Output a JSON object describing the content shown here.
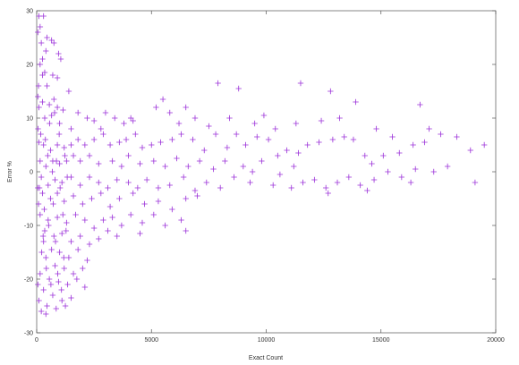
{
  "chart_data": {
    "type": "scatter",
    "title": "",
    "xlabel": "Exact Count",
    "ylabel": "Error %",
    "xlim": [
      0,
      20000
    ],
    "ylim": [
      -30,
      30
    ],
    "xticks": [
      0,
      5000,
      10000,
      15000,
      20000
    ],
    "yticks": [
      -30,
      -20,
      -10,
      0,
      10,
      20,
      30
    ],
    "xtick_labels": [
      "0",
      "5000",
      "10000",
      "15000",
      "20000"
    ],
    "ytick_labels": [
      "-30",
      "-20",
      "-10",
      "0",
      "10",
      "20",
      "30"
    ],
    "grid": false,
    "legend": "none",
    "marker": "+",
    "color": "#9b30d9",
    "series": [
      {
        "points": [
          [
            100,
            29
          ],
          [
            300,
            29
          ],
          [
            150,
            27
          ],
          [
            50,
            26
          ],
          [
            450,
            25
          ],
          [
            650,
            24.5
          ],
          [
            750,
            24
          ],
          [
            200,
            24
          ],
          [
            400,
            22.5
          ],
          [
            950,
            22
          ],
          [
            1050,
            21
          ],
          [
            250,
            21
          ],
          [
            150,
            20
          ],
          [
            350,
            18.5
          ],
          [
            700,
            18
          ],
          [
            900,
            17.5
          ],
          [
            250,
            18
          ],
          [
            450,
            16
          ],
          [
            80,
            16
          ],
          [
            1400,
            15
          ],
          [
            50,
            14
          ],
          [
            750,
            13.5
          ],
          [
            250,
            13
          ],
          [
            550,
            12.5
          ],
          [
            900,
            12
          ],
          [
            1150,
            11.5
          ],
          [
            100,
            12
          ],
          [
            1800,
            11
          ],
          [
            650,
            10.5
          ],
          [
            350,
            10
          ],
          [
            2200,
            10
          ],
          [
            1000,
            9
          ],
          [
            2500,
            9.5
          ],
          [
            3000,
            11
          ],
          [
            3400,
            10
          ],
          [
            3800,
            9
          ],
          [
            4100,
            10
          ],
          [
            4200,
            9.5
          ],
          [
            2800,
            8
          ],
          [
            1500,
            8
          ],
          [
            5500,
            13.5
          ],
          [
            5200,
            12
          ],
          [
            5800,
            11
          ],
          [
            6200,
            9
          ],
          [
            6500,
            12
          ],
          [
            6900,
            10
          ],
          [
            7500,
            8.5
          ],
          [
            7900,
            16.5
          ],
          [
            8400,
            10
          ],
          [
            8800,
            15.5
          ],
          [
            9500,
            9
          ],
          [
            9900,
            10.5
          ],
          [
            10400,
            8
          ],
          [
            11300,
            9
          ],
          [
            11500,
            16.5
          ],
          [
            12400,
            9.5
          ],
          [
            12800,
            15
          ],
          [
            13200,
            10
          ],
          [
            13900,
            13
          ],
          [
            14800,
            8
          ],
          [
            15500,
            6.5
          ],
          [
            16700,
            12.5
          ],
          [
            17100,
            8
          ],
          [
            17600,
            7
          ],
          [
            18300,
            6.5
          ],
          [
            19500,
            5
          ],
          [
            18900,
            4
          ],
          [
            16900,
            5.5
          ],
          [
            16400,
            5
          ],
          [
            15800,
            3.5
          ],
          [
            15100,
            3
          ],
          [
            14600,
            1.5
          ],
          [
            14300,
            3
          ],
          [
            13800,
            6
          ],
          [
            13400,
            6.5
          ],
          [
            12900,
            6
          ],
          [
            12300,
            5.5
          ],
          [
            11800,
            5
          ],
          [
            11400,
            3.5
          ],
          [
            10900,
            4
          ],
          [
            10500,
            3
          ],
          [
            10100,
            6
          ],
          [
            9600,
            6.5
          ],
          [
            9100,
            5
          ],
          [
            8700,
            7
          ],
          [
            8300,
            4.5
          ],
          [
            7800,
            7
          ],
          [
            7300,
            4
          ],
          [
            6800,
            6
          ],
          [
            6300,
            7
          ],
          [
            5900,
            6
          ],
          [
            5400,
            5.5
          ],
          [
            5000,
            5
          ],
          [
            4600,
            4.5
          ],
          [
            4300,
            7
          ],
          [
            3900,
            6
          ],
          [
            3600,
            5.5
          ],
          [
            3200,
            5
          ],
          [
            2900,
            7
          ],
          [
            2500,
            6
          ],
          [
            2100,
            5
          ],
          [
            1800,
            6
          ],
          [
            1500,
            5
          ],
          [
            1200,
            4.5
          ],
          [
            900,
            5
          ],
          [
            600,
            4
          ],
          [
            300,
            5
          ],
          [
            100,
            5.5
          ],
          [
            2300,
            3
          ],
          [
            1900,
            2
          ],
          [
            1600,
            3
          ],
          [
            1300,
            2
          ],
          [
            1000,
            1.5
          ],
          [
            700,
            2
          ],
          [
            400,
            1
          ],
          [
            150,
            2
          ],
          [
            2700,
            1.5
          ],
          [
            3300,
            2
          ],
          [
            3700,
            1
          ],
          [
            4000,
            3
          ],
          [
            4500,
            1.5
          ],
          [
            5100,
            2
          ],
          [
            5600,
            1
          ],
          [
            6100,
            2.5
          ],
          [
            6600,
            1
          ],
          [
            7100,
            2
          ],
          [
            7700,
            0.5
          ],
          [
            8200,
            2
          ],
          [
            9000,
            1
          ],
          [
            9400,
            0
          ],
          [
            9800,
            2
          ],
          [
            10600,
            -0.5
          ],
          [
            11200,
            1
          ],
          [
            11600,
            -2
          ],
          [
            12100,
            -1.5
          ],
          [
            12600,
            -3
          ],
          [
            13100,
            -2
          ],
          [
            13600,
            -1
          ],
          [
            14100,
            -2.5
          ],
          [
            14700,
            -1.5
          ],
          [
            15300,
            0
          ],
          [
            15900,
            -1
          ],
          [
            16500,
            0.5
          ],
          [
            17300,
            0
          ],
          [
            17900,
            1
          ],
          [
            19100,
            -2
          ],
          [
            16300,
            -2
          ],
          [
            14400,
            -3.5
          ],
          [
            12700,
            -4
          ],
          [
            11100,
            -3
          ],
          [
            10300,
            -2.5
          ],
          [
            9300,
            -2
          ],
          [
            8600,
            -1
          ],
          [
            8000,
            -3
          ],
          [
            7400,
            -2
          ],
          [
            6900,
            -3.5
          ],
          [
            6400,
            -1
          ],
          [
            5800,
            -2.5
          ],
          [
            5300,
            -3
          ],
          [
            4800,
            -1.5
          ],
          [
            4400,
            -3
          ],
          [
            4000,
            -2
          ],
          [
            3500,
            -1.5
          ],
          [
            3100,
            -3
          ],
          [
            2700,
            -2
          ],
          [
            2300,
            -1
          ],
          [
            1900,
            -2.5
          ],
          [
            1500,
            -1
          ],
          [
            1100,
            -2
          ],
          [
            800,
            -1.5
          ],
          [
            500,
            -2.5
          ],
          [
            200,
            -1
          ],
          [
            50,
            -3
          ],
          [
            250,
            -4
          ],
          [
            600,
            -5
          ],
          [
            900,
            -4
          ],
          [
            1200,
            -5.5
          ],
          [
            1600,
            -4.5
          ],
          [
            2000,
            -6
          ],
          [
            2400,
            -5
          ],
          [
            2800,
            -4
          ],
          [
            3200,
            -6.5
          ],
          [
            3600,
            -5
          ],
          [
            4200,
            -4
          ],
          [
            4700,
            -6
          ],
          [
            5300,
            -5.5
          ],
          [
            5900,
            -7
          ],
          [
            6500,
            -5
          ],
          [
            7000,
            -4.5
          ],
          [
            6300,
            -9
          ],
          [
            5600,
            -10
          ],
          [
            5100,
            -8
          ],
          [
            4600,
            -9.5
          ],
          [
            4100,
            -8
          ],
          [
            3700,
            -10
          ],
          [
            3300,
            -8.5
          ],
          [
            2900,
            -9
          ],
          [
            2500,
            -10.5
          ],
          [
            2100,
            -9
          ],
          [
            1700,
            -8
          ],
          [
            1300,
            -9.5
          ],
          [
            900,
            -8.5
          ],
          [
            500,
            -9
          ],
          [
            150,
            -8
          ],
          [
            350,
            -11
          ],
          [
            750,
            -12
          ],
          [
            1100,
            -11.5
          ],
          [
            1500,
            -13
          ],
          [
            1900,
            -12
          ],
          [
            2300,
            -13.5
          ],
          [
            2700,
            -12.5
          ],
          [
            3100,
            -11
          ],
          [
            3500,
            -12
          ],
          [
            4500,
            -11.5
          ],
          [
            6500,
            -11
          ],
          [
            300,
            -13
          ],
          [
            650,
            -14.5
          ],
          [
            1000,
            -15
          ],
          [
            1400,
            -16
          ],
          [
            1800,
            -14.5
          ],
          [
            2200,
            -16.5
          ],
          [
            400,
            -16
          ],
          [
            800,
            -17.5
          ],
          [
            1200,
            -18
          ],
          [
            1600,
            -19
          ],
          [
            2000,
            -18
          ],
          [
            150,
            -19
          ],
          [
            550,
            -20
          ],
          [
            950,
            -20.5
          ],
          [
            1350,
            -21
          ],
          [
            1750,
            -20
          ],
          [
            2100,
            -21.5
          ],
          [
            300,
            -22
          ],
          [
            700,
            -23
          ],
          [
            1100,
            -24
          ],
          [
            1500,
            -23.5
          ],
          [
            100,
            -24
          ],
          [
            450,
            -25
          ],
          [
            850,
            -25.5
          ],
          [
            1250,
            -25
          ],
          [
            200,
            -26
          ],
          [
            400,
            -26.5
          ],
          [
            50,
            -21
          ],
          [
            80,
            -6
          ],
          [
            120,
            -3
          ],
          [
            60,
            8
          ],
          [
            180,
            7
          ],
          [
            220,
            -15
          ],
          [
            280,
            -12
          ],
          [
            330,
            -7
          ],
          [
            380,
            6
          ],
          [
            420,
            -18
          ],
          [
            480,
            3
          ],
          [
            520,
            -10
          ],
          [
            560,
            9
          ],
          [
            620,
            -21
          ],
          [
            680,
            0
          ],
          [
            720,
            -6
          ],
          [
            780,
            11
          ],
          [
            820,
            -13
          ],
          [
            860,
            2
          ],
          [
            920,
            -19
          ],
          [
            980,
            7
          ],
          [
            1020,
            -3
          ],
          [
            1080,
            -22
          ],
          [
            1140,
            -8
          ],
          [
            1180,
            -16
          ],
          [
            1230,
            3
          ],
          [
            1280,
            -11
          ],
          [
            1330,
            -1
          ]
        ]
      }
    ]
  }
}
